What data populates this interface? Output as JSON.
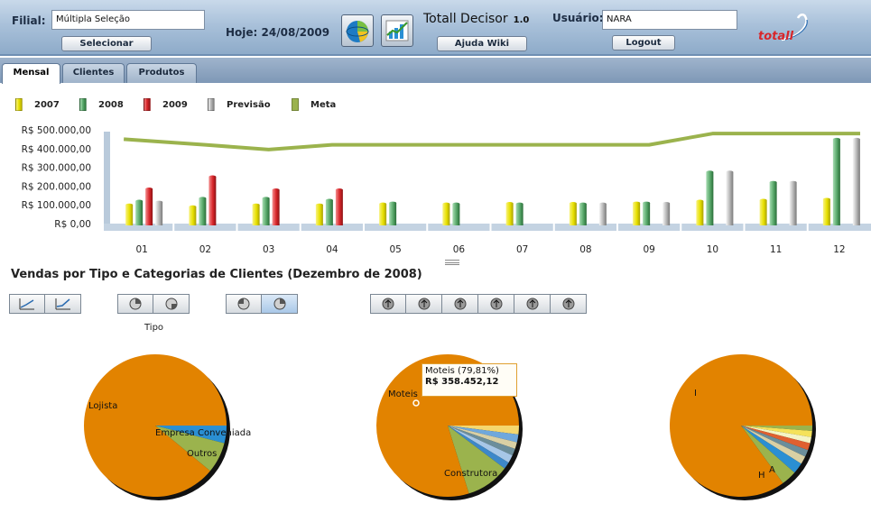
{
  "header": {
    "filial_label": "Filial:",
    "filial_value": "Múltipla Seleção",
    "select_button": "Selecionar",
    "date_text": "Hoje: 24/08/2009",
    "app_title": "Totall Decisor",
    "version": "1.0",
    "help_button": "Ajuda Wiki",
    "user_label": "Usuário:",
    "user_value": "NARA",
    "logout_button": "Logout",
    "logo_text": "totall",
    "icons": [
      "pie-chart-icon",
      "line-chart-icon"
    ]
  },
  "tabs": [
    {
      "label": "Mensal",
      "active": true
    },
    {
      "label": "Clientes",
      "active": false
    },
    {
      "label": "Produtos",
      "active": false
    }
  ],
  "colors": {
    "y2007": "#e7e000",
    "y2008": "#58a86a",
    "y2009": "#d8262a",
    "previsao": "#b4b4b4",
    "meta": "#9bb34d",
    "pie_main": "#e28300"
  },
  "chart_data": {
    "type": "bar",
    "categories": [
      "01",
      "02",
      "03",
      "04",
      "05",
      "06",
      "07",
      "08",
      "09",
      "10",
      "11",
      "12"
    ],
    "series": [
      {
        "name": "2007",
        "values": [
          100000,
          90000,
          100000,
          100000,
          105000,
          105000,
          108000,
          108000,
          110000,
          120000,
          125000,
          130000
        ]
      },
      {
        "name": "2008",
        "values": [
          120000,
          135000,
          135000,
          125000,
          110000,
          105000,
          105000,
          105000,
          110000,
          275000,
          220000,
          450000
        ]
      },
      {
        "name": "2009",
        "values": [
          185000,
          250000,
          180000,
          180000,
          null,
          null,
          null,
          null,
          null,
          null,
          null,
          null
        ]
      },
      {
        "name": "Previsão",
        "values": [
          115000,
          null,
          null,
          null,
          null,
          null,
          null,
          105000,
          108000,
          275000,
          220000,
          450000
        ]
      },
      {
        "name": "Meta",
        "type": "line",
        "values": [
          450000,
          420000,
          395000,
          420000,
          420000,
          420000,
          420000,
          420000,
          420000,
          480000,
          480000,
          480000
        ]
      }
    ],
    "yticks": [
      "R$ 500.000,00",
      "R$ 400.000,00",
      "R$ 300.000,00",
      "R$ 200.000,00",
      "R$ 100.000,00",
      "R$ 0,00"
    ],
    "ylim": [
      0,
      500000
    ]
  },
  "section_title": "Vendas por Tipo e Categorias de Clientes (Dezembro de 2008)",
  "tipo_label": "Tipo",
  "pies": [
    {
      "name": "tipo",
      "slices": [
        {
          "label": "Lojista",
          "value": 89,
          "color": "#e28300"
        },
        {
          "label": "Empresa Conveniada",
          "value": 4,
          "color": "#2a8fd3"
        },
        {
          "label": "Outros",
          "value": 7,
          "color": "#9bb34d"
        }
      ]
    },
    {
      "name": "categoria",
      "slices": [
        {
          "label": "Moteis",
          "value": 79.81,
          "color": "#e28300"
        },
        {
          "label": "",
          "value": 2,
          "color": "#f5d76e"
        },
        {
          "label": "",
          "value": 1.8,
          "color": "#6fa8dc"
        },
        {
          "label": "",
          "value": 1.5,
          "color": "#d9d0a4"
        },
        {
          "label": "",
          "value": 1.6,
          "color": "#6b8e9b"
        },
        {
          "label": "",
          "value": 1.8,
          "color": "#a7c7e7"
        },
        {
          "label": "",
          "value": 1.6,
          "color": "#3d88c9"
        },
        {
          "label": "Construtora",
          "value": 9.89,
          "color": "#9bb34d"
        }
      ],
      "tooltip_title": "Moteis (79,81%)",
      "tooltip_value": "R$ 358.452,12"
    },
    {
      "name": "outra",
      "slices": [
        {
          "label": "I",
          "value": 85,
          "color": "#e28300"
        },
        {
          "label": "",
          "value": 1.2,
          "color": "#9bb34d"
        },
        {
          "label": "",
          "value": 1.4,
          "color": "#f5e25a"
        },
        {
          "label": "",
          "value": 1.4,
          "color": "#f4f4c4"
        },
        {
          "label": "",
          "value": 1.6,
          "color": "#e06030"
        },
        {
          "label": "",
          "value": 1.6,
          "color": "#6b8e9b"
        },
        {
          "label": "",
          "value": 1.8,
          "color": "#d9d0a4"
        },
        {
          "label": "A",
          "value": 2.5,
          "color": "#2a8fd3"
        },
        {
          "label": "H",
          "value": 3.5,
          "color": "#9bb34d"
        }
      ]
    }
  ]
}
